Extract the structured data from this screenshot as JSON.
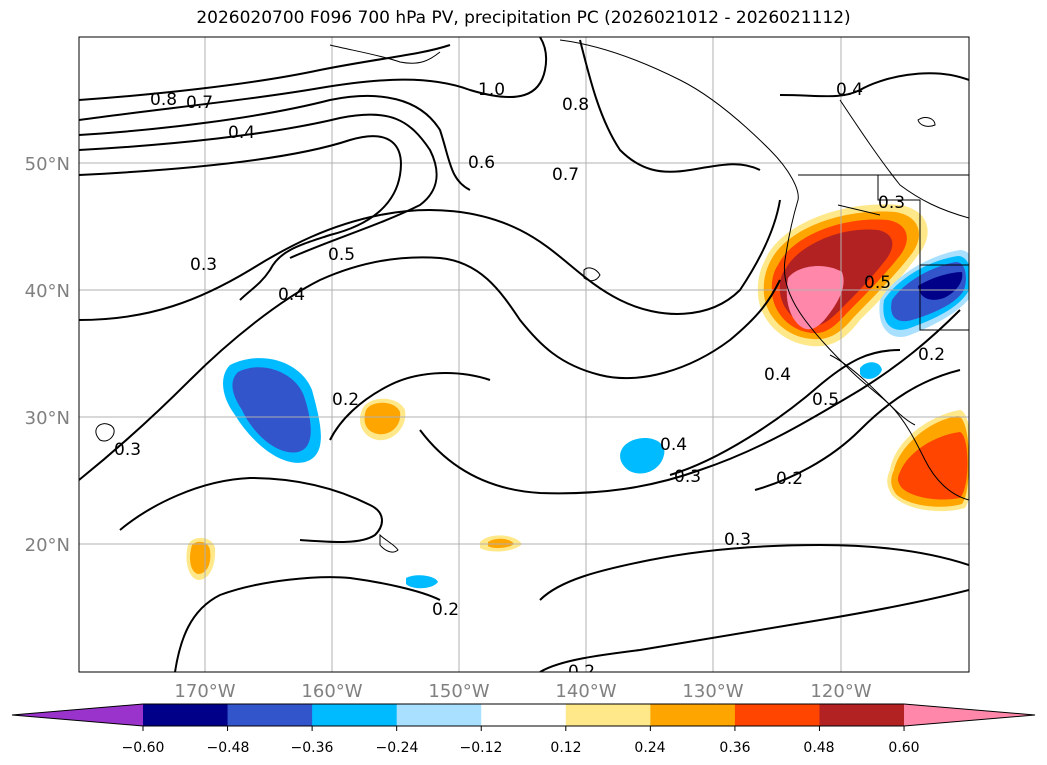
{
  "title": "2026020700 F096 700 hPa PV, precipitation PC (2026021012 - 2026021112)",
  "lat_labels": [
    "50°N",
    "40°N",
    "30°N",
    "20°N"
  ],
  "lon_labels": [
    "170°W",
    "160°W",
    "150°W",
    "140°W",
    "130°W",
    "120°W"
  ],
  "contour_labels": [
    "0.8",
    "0.7",
    "0.4",
    "1.0",
    "0.8",
    "0.4",
    "0.6",
    "0.7",
    "0.3",
    "0.5",
    "0.3",
    "0.4",
    "0.5",
    "0.2",
    "0.4",
    "0.2",
    "0.3",
    "0.4",
    "0.5",
    "0.3",
    "0.2",
    "0.3",
    "0.2",
    "0.2"
  ],
  "colorbar": {
    "ticks": [
      "−0.60",
      "−0.48",
      "−0.36",
      "−0.24",
      "−0.12",
      "0.12",
      "0.24",
      "0.36",
      "0.48",
      "0.60"
    ],
    "colors": [
      "#9933cc",
      "#000088",
      "#3355cc",
      "#00bbff",
      "#aae0ff",
      "#ffffff",
      "#ffe88a",
      "#ffa500",
      "#ff4500",
      "#b22222",
      "#ff88aa"
    ]
  },
  "legend_colors": {
    "strong_neg": "#3355cc",
    "neg": "#00bbff",
    "light_neg": "#aae0ff",
    "light_pos": "#ffe88a",
    "pos": "#ffa500",
    "strong_pos": "#ff4500",
    "very_strong_pos": "#b22222",
    "max_pos": "#ff88aa"
  }
}
